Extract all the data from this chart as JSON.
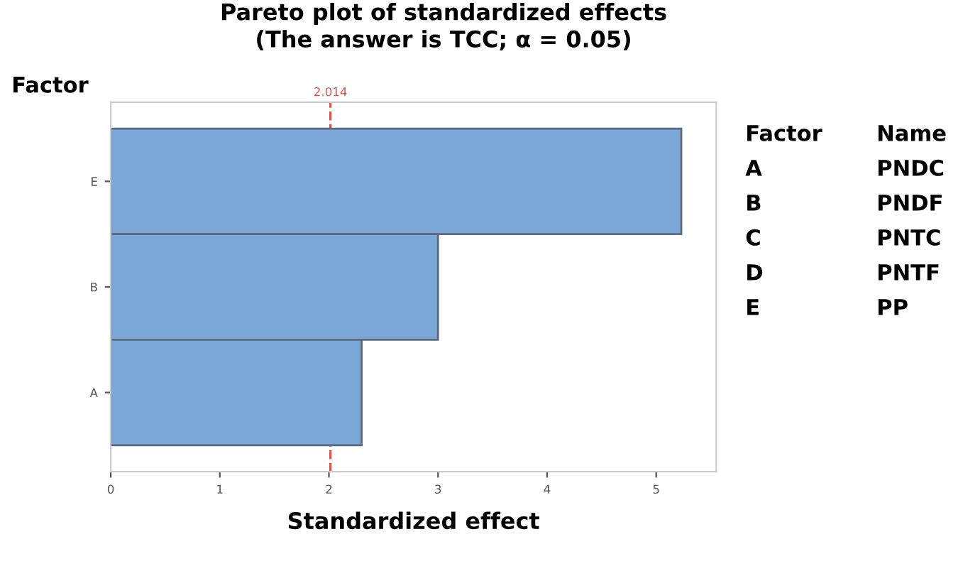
{
  "chart_data": {
    "type": "bar",
    "orientation": "horizontal",
    "title": "Pareto plot of standardized effects\n(The answer is TCC; α = 0.05)",
    "xlabel": "Standardized effect",
    "ylabel": "Factor",
    "categories": [
      "E",
      "B",
      "A"
    ],
    "values": [
      5.23,
      3.0,
      2.3
    ],
    "color": "#7ba7d7",
    "xlim": [
      0,
      5.55
    ],
    "xticks": [
      0,
      1,
      2,
      3,
      4,
      5
    ],
    "ref_lines": [
      {
        "axis": "x",
        "value": 2.014,
        "label": "2.014",
        "color": "#d9534f",
        "line_style": "dashed"
      }
    ],
    "annotations": [
      "Factor",
      "Name",
      "A",
      "PNDC",
      "B",
      "PNDF",
      "C",
      "PNTC",
      "D",
      "PNTF",
      "E",
      "PP"
    ],
    "grid": false,
    "legend": false
  }
}
